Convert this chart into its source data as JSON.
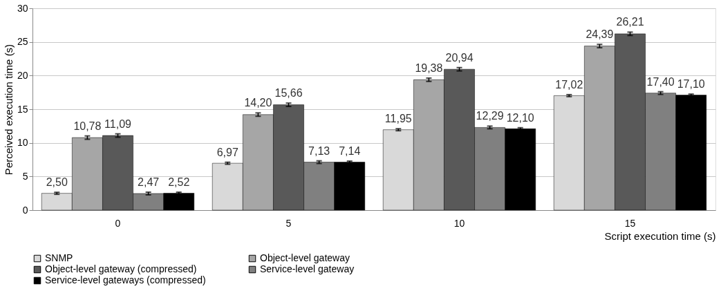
{
  "chart_data": {
    "type": "bar",
    "xlabel": "Script execution time (s)",
    "ylabel": "Perceived execution time (s)",
    "categories": [
      "0",
      "5",
      "10",
      "15"
    ],
    "ylim": [
      0,
      30
    ],
    "yticks": [
      0,
      5,
      10,
      15,
      20,
      25,
      30
    ],
    "grid": "y",
    "legend": "bottom",
    "series": [
      {
        "name": "SNMP",
        "color": "#d9d9d9",
        "values": [
          2.5,
          6.97,
          11.95,
          17.02
        ],
        "errors": [
          0.15,
          0.15,
          0.15,
          0.15
        ],
        "value_labels": [
          "2,50",
          "6,97",
          "11,95",
          "17,02"
        ]
      },
      {
        "name": "Object-level gateway",
        "color": "#a6a6a6",
        "values": [
          10.78,
          14.2,
          19.38,
          24.39
        ],
        "errors": [
          0.25,
          0.25,
          0.25,
          0.25
        ],
        "value_labels": [
          "10,78",
          "14,20",
          "19,38",
          "24,39"
        ]
      },
      {
        "name": "Object-level gateway (compressed)",
        "color": "#595959",
        "values": [
          11.09,
          15.66,
          20.94,
          26.21
        ],
        "errors": [
          0.25,
          0.25,
          0.25,
          0.25
        ],
        "value_labels": [
          "11,09",
          "15,66",
          "20,94",
          "26,21"
        ]
      },
      {
        "name": "Service-level gateway",
        "color": "#808080",
        "values": [
          2.47,
          7.13,
          12.29,
          17.4
        ],
        "errors": [
          0.2,
          0.2,
          0.2,
          0.2
        ],
        "value_labels": [
          "2,47",
          "7,13",
          "12,29",
          "17,40"
        ]
      },
      {
        "name": "Service-level gateways (compressed)",
        "color": "#000000",
        "values": [
          2.52,
          7.14,
          12.1,
          17.1
        ],
        "errors": [
          0.15,
          0.15,
          0.15,
          0.15
        ],
        "value_labels": [
          "2,52",
          "7,14",
          "12,10",
          "17,10"
        ]
      }
    ]
  }
}
